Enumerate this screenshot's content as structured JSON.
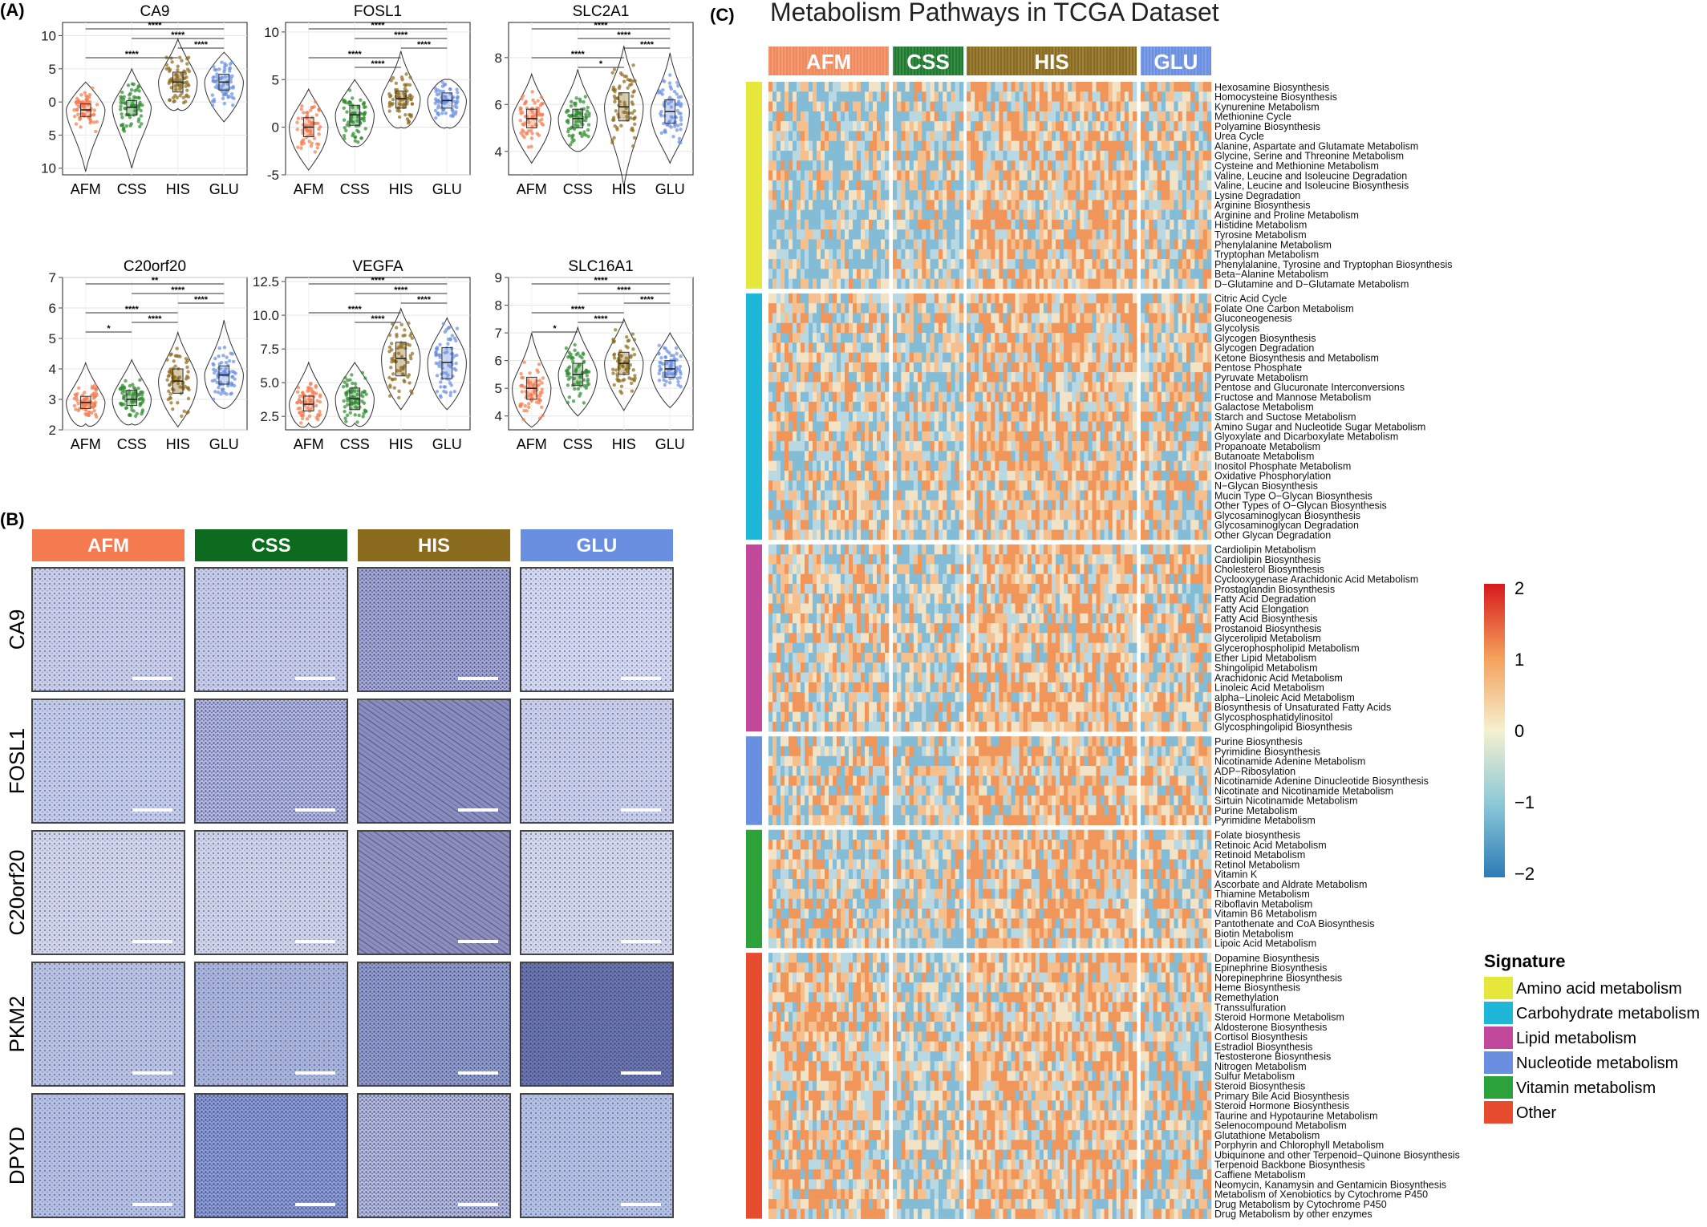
{
  "panel_a": {
    "label": "(A)",
    "groups": [
      "AFM",
      "CSS",
      "HIS",
      "GLU"
    ],
    "colors": {
      "AFM": "#f47a4f",
      "CSS": "#2e8b2e",
      "HIS": "#8b6b1e",
      "GLU": "#6a8fe0"
    },
    "plots": [
      {
        "title": "CA9",
        "yticks": [
          "10",
          "5",
          "0",
          "5",
          "10"
        ],
        "ylim": [
          -11,
          12
        ],
        "tick_values": [
          10,
          5,
          0,
          -5,
          -10
        ],
        "medians": [
          -1.2,
          -0.8,
          3.0,
          3.0
        ],
        "q1": [
          -2.2,
          -2.0,
          1.5,
          1.8
        ],
        "q3": [
          -0.3,
          0.2,
          4.5,
          4.2
        ],
        "ymin": [
          -10.5,
          -10,
          -1,
          -3
        ],
        "ymax": [
          3,
          5,
          9.5,
          7.5
        ],
        "sig": [
          "****",
          "****",
          "****",
          "****"
        ]
      },
      {
        "title": "FOSL1",
        "yticks": [
          "10",
          "5",
          "0",
          "-5"
        ],
        "ylim": [
          -5,
          11
        ],
        "tick_values": [
          10,
          5,
          0,
          -5
        ],
        "medians": [
          0,
          1.3,
          3.0,
          2.8
        ],
        "q1": [
          -1,
          0.2,
          2.0,
          2.0
        ],
        "q3": [
          1,
          2.3,
          3.8,
          3.6
        ],
        "ymin": [
          -4.5,
          -2,
          0,
          0
        ],
        "ymax": [
          4,
          5,
          8,
          5
        ],
        "sig": [
          "****",
          "****",
          "****",
          "****",
          "****"
        ]
      },
      {
        "title": "SLC2A1",
        "yticks": [
          "8",
          "6",
          "4"
        ],
        "ylim": [
          3,
          9.5
        ],
        "tick_values": [
          8,
          6,
          4
        ],
        "medians": [
          5.4,
          5.4,
          5.9,
          5.7
        ],
        "q1": [
          5.0,
          5.0,
          5.3,
          5.2
        ],
        "q3": [
          5.8,
          5.8,
          6.5,
          6.2
        ],
        "ymin": [
          3.5,
          4,
          2.5,
          3.5
        ],
        "ymax": [
          7.3,
          7.5,
          8.5,
          8.2
        ],
        "sig": [
          "****",
          "****",
          "****",
          "****",
          "*"
        ]
      },
      {
        "title": "C20orf20",
        "yticks": [
          "7",
          "6",
          "5",
          "4",
          "3",
          "2"
        ],
        "ylim": [
          2,
          7
        ],
        "tick_values": [
          7,
          6,
          5,
          4,
          3,
          2
        ],
        "medians": [
          2.9,
          3.0,
          3.6,
          3.8
        ],
        "q1": [
          2.7,
          2.8,
          3.2,
          3.5
        ],
        "q3": [
          3.1,
          3.3,
          4.0,
          4.1
        ],
        "ymin": [
          2.2,
          2.2,
          2.1,
          2.7
        ],
        "ymax": [
          4.2,
          4.3,
          5.2,
          5.6
        ],
        "sig": [
          "**",
          "****",
          "****",
          "****",
          "****",
          "*"
        ]
      },
      {
        "title": "VEGFA",
        "yticks": [
          "12.5",
          "10.0",
          "7.5",
          "5.0",
          "2.5"
        ],
        "ylim": [
          1.5,
          12.8
        ],
        "tick_values": [
          12.5,
          10,
          7.5,
          5,
          2.5
        ],
        "medians": [
          3.4,
          3.8,
          6.8,
          6.5
        ],
        "q1": [
          2.9,
          3.0,
          5.5,
          5.3
        ],
        "q3": [
          4.0,
          4.6,
          8.0,
          7.6
        ],
        "ymin": [
          2,
          2,
          3,
          3
        ],
        "ymax": [
          6.5,
          6.5,
          10.5,
          9.8
        ],
        "sig": [
          "****",
          "****",
          "****",
          "****",
          "****"
        ]
      },
      {
        "title": "SLC16A1",
        "yticks": [
          "9",
          "8",
          "7",
          "6",
          "5",
          "4"
        ],
        "ylim": [
          3.5,
          9
        ],
        "tick_values": [
          9,
          8,
          7,
          6,
          5,
          4
        ],
        "medians": [
          5.0,
          5.5,
          5.9,
          5.7
        ],
        "q1": [
          4.6,
          5.1,
          5.5,
          5.4
        ],
        "q3": [
          5.4,
          5.9,
          6.3,
          6.0
        ],
        "ymin": [
          3.6,
          4,
          4.2,
          4.3
        ],
        "ymax": [
          7,
          7.2,
          7.5,
          7
        ],
        "sig": [
          "****",
          "****",
          "****",
          "****",
          "****",
          "*"
        ]
      }
    ]
  },
  "panel_b": {
    "label": "(B)",
    "headers": [
      "AFM",
      "CSS",
      "HIS",
      "GLU"
    ],
    "rows": [
      "CA9",
      "FOSL1",
      "C20orf20",
      "PKM2",
      "DPYD"
    ]
  },
  "panel_c": {
    "label": "(C)",
    "title": "Metabolism Pathways in TCGA Dataset",
    "col_groups": [
      "AFM",
      "CSS",
      "HIS",
      "GLU"
    ],
    "legend_scale_ticks": [
      "2",
      "1",
      "0",
      "−1",
      "−2"
    ],
    "legend_title": "Signature",
    "signatures": [
      {
        "name": "Amino acid metabolism",
        "color": "#e5e83a"
      },
      {
        "name": "Carbohydrate metabolism",
        "color": "#1fb7d8"
      },
      {
        "name": "Lipid metabolism",
        "color": "#c2489b"
      },
      {
        "name": "Nucleotide metabolism",
        "color": "#6a8fe0"
      },
      {
        "name": "Vitamin metabolism",
        "color": "#2ca33a"
      },
      {
        "name": "Other",
        "color": "#e74c2e"
      }
    ],
    "row_groups": [
      {
        "sig": 0,
        "rows": [
          "Hexosamine Biosynthesis",
          "Homocysteine Biosynthesis",
          "Kynurenine Metabolism",
          "Methionine Cycle",
          "Polyamine Biosynthesis",
          "Urea Cycle",
          "Alanine, Aspartate and Glutamate Metabolism",
          "Glycine, Serine and Threonine Metabolism",
          "Cysteine and Methionine Metabolism",
          "Valine, Leucine and Isoleucine Degradation",
          "Valine, Leucine and Isoleucine Biosynthesis",
          "Lysine Degradation",
          "Arginine Biosynthesis",
          "Arginine and Proline Metabolism",
          "Histidine Metabolism",
          "Tyrosine Metabolism",
          "Phenylalanine Metabolism",
          "Tryptophan Metabolism",
          "Phenylalanine, Tyrosine and Tryptophan Biosynthesis",
          "Beta−Alanine Metabolism",
          "D−Glutamine and D−Glutamate Metabolism"
        ]
      },
      {
        "sig": 1,
        "rows": [
          "Citric Acid Cycle",
          "Folate One Carbon Metabolism",
          "Gluconeogenesis",
          "Glycolysis",
          "Glycogen Biosynthesis",
          "Glycogen Degradation",
          "Ketone Biosynthesis and Metabolism",
          "Pentose Phosphate",
          "Pyruvate Metabolism",
          "Pentose and Glucuronate Interconversions",
          "Fructose and Mannose Metabolism",
          "Galactose Metabolism",
          "Starch and Suctose Metabolism",
          "Amino Sugar and Nucleotide Sugar Metabolism",
          "Glyoxylate and Dicarboxylate Metabolism",
          "Propanoate Metabolism",
          "Butanoate Metabolism",
          "Inositol Phosphate Metabolism",
          "Oxidative Phosphorylation",
          "N−Glycan Biosynthesis",
          "Mucin Type O−Glycan Biosynthesis",
          "Other Types of O−Glycan Biosynthesis",
          "Glycosaminoglycan Biosynthesis",
          "Glycosaminoglycan Degradation",
          "Other Glycan Degradation"
        ]
      },
      {
        "sig": 2,
        "rows": [
          "Cardiolipin Metabolism",
          "Cardiolipin Biosynthesis",
          "Cholesterol Biosynthesis",
          "Cyclooxygenase Arachidonic Acid Metabolism",
          "Prostaglandin Biosynthesis",
          "Fatty Acid Degradation",
          "Fatty Acid Elongation",
          "Fatty Acid Biosynthesis",
          "Prostanoid Biosynthesis",
          "Glycerolipid Metabolism",
          "Glycerophospholipid Metabolism",
          "Ether Lipid Metabolism",
          "Shingolipid Metabolism",
          "Arachidonic Acid Metabolism",
          "Linoleic Acid Metabolism",
          "alpha−Linoleic Acid Metabolism",
          "Biosynthesis of Unsaturated Fatty Acids",
          "Glycosphosphatidylinositol",
          "Glycosphingolipid Biosynthesis"
        ]
      },
      {
        "sig": 3,
        "rows": [
          "Purine Biosynthesis",
          "Pyrimidine Biosynthesis",
          "Nicotinamide Adenine Metabolism",
          "ADP−Ribosylation",
          "Nicotinamide Adenine Dinucleotide Biosynthesis",
          "Nicotinate and Nicotinamide Metabolism",
          "Sirtuin Nicotinamide Metabolism",
          "Purine Metabolism",
          "Pyrimidine Metabolism"
        ]
      },
      {
        "sig": 4,
        "rows": [
          "Folate biosynthesis",
          "Retinoic Acid Metabolism",
          "Retinoid Metabolism",
          "Retinol Metabolism",
          "Vitamin K",
          "Ascorbate and Aldrate Metabolism",
          "Thiamine Metabolism",
          "Riboflavin Metabolism",
          "Vitamin B6 Metabolism",
          "Pantothenate and CoA Biosynthesis",
          "Biotin Metabolism",
          "Lipoic Acid Metabolism"
        ]
      },
      {
        "sig": 5,
        "rows": [
          "Dopamine Biosynthesis",
          "Epinephrine Biosynthesis",
          "Norepinephrine Biosynthesis",
          "Heme Biosynthesis",
          "Remethylation",
          "Transsulfuration",
          "Steroid Hormone Metabolism",
          "Aldosterone Biosynthesis",
          "Cortisol Biosynthesis",
          "Estradiol Biosynthesis",
          "Testosterone Biosynthesis",
          "Nitrogen Metabolism",
          "Sulfur Metabolism",
          "Steroid Biosynthesis",
          "Primary Bile Acid Biosynthesis",
          "Steroid Hormone Biosynthesis",
          "Taurine and Hypotaurine Metabolism",
          "Selenocompound Metabolism",
          "Glutathione Metabolism",
          "Porphyrin and Chlorophyll Metabolism",
          "Ubiquinone and other Terpenoid−Quinone Biosynthesis",
          "Terpenoid Backbone Biosynthesis",
          "Caffiene Metabolism",
          "Neomycin, Kanamysin and Gentamicin Biosynthesis",
          "Metabolism of Xenobiotics by Cytochrome P450",
          "Drug Metabolism by Cytochrome P450",
          "Drug Metabolism by other enzymes"
        ]
      }
    ]
  }
}
